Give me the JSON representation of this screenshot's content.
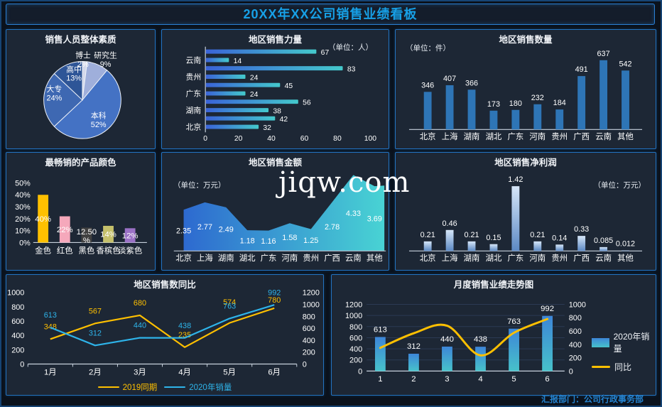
{
  "header": {
    "title": "20XX年XX公司销售业绩看板"
  },
  "watermark": {
    "text": "jiqw.com"
  },
  "footer": {
    "text": "汇报部门：公司行政事务部"
  },
  "theme": {
    "page_bg": "#0b121c",
    "panel_bg": "#1d2735",
    "panel_border": "#2273c2",
    "header_title_color": "#17a0e6",
    "chart_title_color": "#f0f3f7",
    "footer_color": "#2583cf"
  },
  "chart_data": [
    {
      "id": "staff-quality",
      "type": "pie",
      "title": "销售人员整体素质",
      "slices": [
        {
          "label": "博士",
          "value": 2,
          "pct": "2%",
          "color": "#d3d8ea"
        },
        {
          "label": "研究生",
          "value": 9,
          "pct": "9%",
          "color": "#9fafdb"
        },
        {
          "label": "本科",
          "value": 52,
          "pct": "52%",
          "color": "#4472c4"
        },
        {
          "label": "大专",
          "value": 24,
          "pct": "24%",
          "color": "#3e68b2"
        },
        {
          "label": "高中",
          "value": 13,
          "pct": "13%",
          "color": "#2e5597"
        }
      ]
    },
    {
      "id": "region-sales-force",
      "type": "bar-horizontal",
      "title": "地区销售力量",
      "unit": "（单位：人）",
      "xlim": [
        0,
        100
      ],
      "xticks": [
        0,
        20,
        40,
        60,
        80,
        100
      ],
      "groups": [
        {
          "region": "云南",
          "values": [
            67,
            14
          ]
        },
        {
          "region": "贵州",
          "values": [
            83,
            24
          ]
        },
        {
          "region": "广东",
          "values": [
            45,
            24
          ]
        },
        {
          "region": "湖南",
          "values": [
            56,
            38
          ]
        },
        {
          "region": "北京",
          "values": [
            42,
            32
          ]
        }
      ],
      "bar_gradient": [
        "#3a63d8",
        "#44c9cc"
      ]
    },
    {
      "id": "region-sales-qty",
      "type": "bar",
      "title": "地区销售数量",
      "unit": "（单位：件）",
      "categories": [
        "北京",
        "上海",
        "湖南",
        "湖北",
        "广东",
        "河南",
        "贵州",
        "广西",
        "云南",
        "其他"
      ],
      "values": [
        346,
        407,
        366,
        173,
        180,
        232,
        184,
        491,
        637,
        542
      ],
      "bar_color": "#2e75b6"
    },
    {
      "id": "product-colors",
      "type": "bar",
      "title": "最畅销的产品颜色",
      "categories": [
        "金色",
        "红色",
        "黑色",
        "香槟色",
        "淡紫色"
      ],
      "values": [
        40,
        22,
        12.5,
        14,
        12
      ],
      "labels": [
        "40%",
        "22%",
        "12.50%",
        "14%",
        "12%"
      ],
      "colors": [
        "#ffc000",
        "#f5a8bb",
        "#404040",
        "#c5c06b",
        "#9b72c6"
      ],
      "yticks": [
        "0%",
        "10%",
        "20%",
        "30%",
        "40%",
        "50%"
      ],
      "ylim": [
        0,
        50
      ]
    },
    {
      "id": "region-sales-amount",
      "type": "area",
      "title": "地区销售金额",
      "unit": "（单位：万元）",
      "categories": [
        "北京",
        "上海",
        "湖南",
        "湖北",
        "广东",
        "河南",
        "贵州",
        "广西",
        "云南",
        "其他"
      ],
      "values": [
        2.35,
        2.77,
        2.49,
        1.18,
        1.16,
        1.58,
        1.25,
        2.78,
        4.33,
        3.69
      ],
      "area_gradient": [
        "#2e6cd6",
        "#4adada"
      ]
    },
    {
      "id": "region-net-profit",
      "type": "bar",
      "title": "地区销售净利润",
      "unit": "（单位：万元）",
      "categories": [
        "北京",
        "上海",
        "湖南",
        "湖北",
        "广东",
        "河南",
        "贵州",
        "广西",
        "云南",
        "其他"
      ],
      "values": [
        0.21,
        0.46,
        0.21,
        0.15,
        1.42,
        0.21,
        0.14,
        0.33,
        0.085,
        0.012
      ],
      "bar_gradient": [
        "#d6e6f8",
        "#5c89c4"
      ]
    },
    {
      "id": "region-sales-yoy",
      "type": "line",
      "title": "地区销售数同比",
      "categories": [
        "1月",
        "2月",
        "3月",
        "4月",
        "5月",
        "6月"
      ],
      "left_axis": {
        "min": 0,
        "max": 1000,
        "step": 200
      },
      "right_axis": {
        "min": 0,
        "max": 1200,
        "step": 200
      },
      "series": [
        {
          "name": "2019同期",
          "color": "#ffc000",
          "axis": "left",
          "values": [
            348,
            567,
            680,
            235,
            574,
            780
          ]
        },
        {
          "name": "2020年销量",
          "color": "#2eb4ea",
          "axis": "right",
          "values": [
            613,
            312,
            440,
            438,
            763,
            992
          ]
        }
      ]
    },
    {
      "id": "monthly-trend",
      "type": "combo",
      "title": "月度销售业绩走势图",
      "categories": [
        "1",
        "2",
        "3",
        "4",
        "5",
        "6"
      ],
      "left_axis": {
        "min": 0,
        "max": 1200,
        "step": 200
      },
      "right_axis": {
        "min": 0,
        "max": 1000,
        "step": 200
      },
      "bar_series": {
        "name": "2020年销量",
        "values": [
          613,
          312,
          440,
          438,
          763,
          992
        ],
        "gradient": [
          "#3d86d8",
          "#47c2ca"
        ]
      },
      "line_series": {
        "name": "同比",
        "color": "#ffc000",
        "values": [
          348,
          567,
          680,
          235,
          574,
          780
        ]
      },
      "grid": true
    }
  ]
}
